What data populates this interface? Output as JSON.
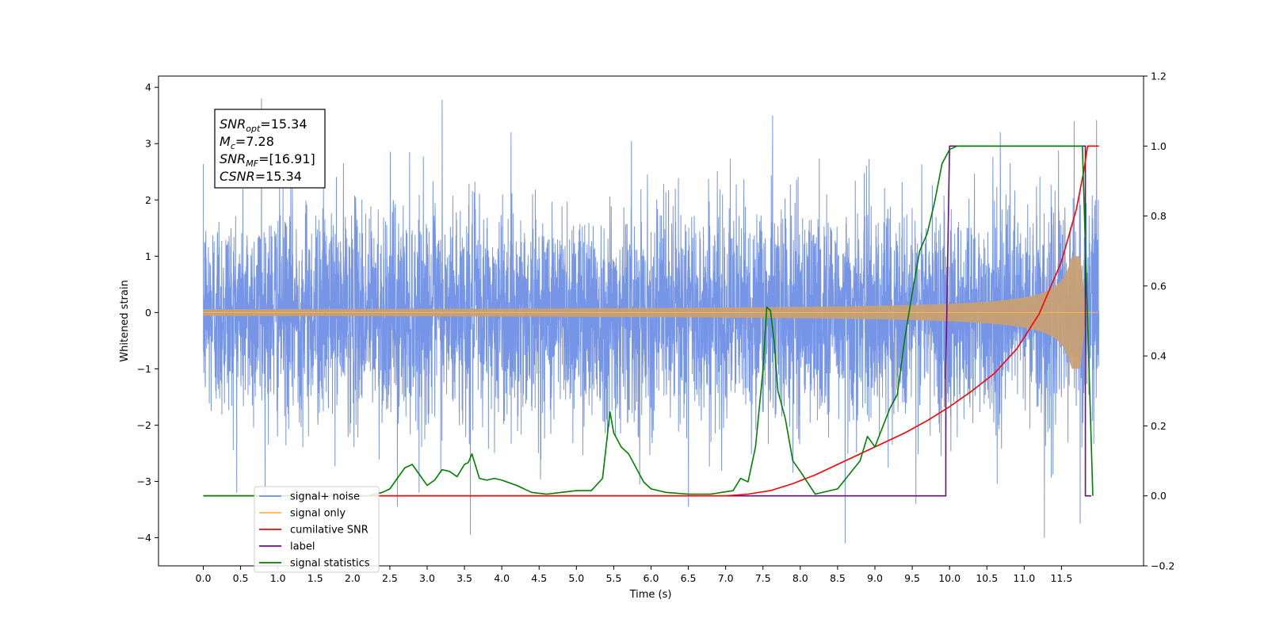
{
  "chart_data": {
    "type": "line",
    "xlabel": "Time (s)",
    "ylabel_left": "Whitened strain",
    "ylabel_right": "",
    "xlim": [
      -0.6,
      12.6
    ],
    "ylim_left": [
      -4.5,
      4.2
    ],
    "ylim_right": [
      -0.2,
      1.2
    ],
    "x_ticks": [
      "0.0",
      "0.5",
      "1.0",
      "1.5",
      "2.0",
      "2.5",
      "3.0",
      "3.5",
      "4.0",
      "4.5",
      "5.0",
      "5.5",
      "6.0",
      "6.5",
      "7.0",
      "7.5",
      "8.0",
      "8.5",
      "9.0",
      "9.5",
      "10.0",
      "10.5",
      "11.0",
      "11.5"
    ],
    "y_ticks_left": [
      "4",
      "3",
      "2",
      "1",
      "0",
      "−1",
      "−2",
      "−3",
      "−4"
    ],
    "y_ticks_right": [
      "1.2",
      "1.0",
      "0.8",
      "0.6",
      "0.4",
      "0.2",
      "0.0",
      "−0.2"
    ],
    "grid": false,
    "legend_position": "lower-left",
    "annotation": {
      "lines": [
        {
          "main": "SNR",
          "sub": "opt",
          "rest": "=15.34"
        },
        {
          "main": "M",
          "sub": "c",
          "rest": "=7.28"
        },
        {
          "main": "SNR",
          "sub": "MF",
          "rest": "=[16.91]"
        },
        {
          "main": "CSNR",
          "sub": "",
          "rest": "=15.34"
        }
      ]
    },
    "series": [
      {
        "name": "signal+ noise",
        "color": "#6f8fe6",
        "axis": "left",
        "noise_sigma": 1.0,
        "peaks": [
          {
            "x": 0.78,
            "y": 3.8
          },
          {
            "x": 3.2,
            "y": 3.78
          },
          {
            "x": 7.63,
            "y": 3.5
          },
          {
            "x": 3.58,
            "y": -3.95
          },
          {
            "x": 8.6,
            "y": -4.1
          },
          {
            "x": 11.27,
            "y": -4.0
          },
          {
            "x": 11.75,
            "y": -3.75
          },
          {
            "x": 6.5,
            "y": -3.45
          },
          {
            "x": 2.6,
            "y": -3.45
          },
          {
            "x": 9.55,
            "y": -3.4
          },
          {
            "x": 11.67,
            "y": 3.4
          },
          {
            "x": 11.97,
            "y": 3.42
          }
        ]
      },
      {
        "name": "signal only",
        "color": "#ffb74d",
        "axis": "left",
        "chirp": {
          "t_merge": 11.75,
          "t_end": 12.0,
          "amp_near": 1.0,
          "amp_far": 0.03
        }
      },
      {
        "name": "cumilative SNR",
        "color": "#ff0000",
        "axis": "right",
        "x": [
          0,
          7.0,
          7.3,
          7.6,
          7.9,
          8.2,
          8.5,
          8.8,
          9.1,
          9.4,
          9.7,
          10.0,
          10.3,
          10.6,
          10.9,
          11.2,
          11.5,
          11.7,
          11.8,
          11.85,
          11.9,
          12.0
        ],
        "values": [
          0,
          0,
          0.005,
          0.015,
          0.035,
          0.06,
          0.09,
          0.12,
          0.15,
          0.18,
          0.215,
          0.255,
          0.3,
          0.35,
          0.42,
          0.52,
          0.67,
          0.82,
          0.93,
          1.0,
          1.0,
          1.0
        ]
      },
      {
        "name": "label",
        "color": "#6a0d83",
        "axis": "right",
        "x": [
          0,
          9.95,
          9.95,
          10.0,
          11.82,
          11.82,
          11.9
        ],
        "values": [
          0,
          0,
          0.35,
          1.0,
          1.0,
          0,
          0
        ]
      },
      {
        "name": "signal statistics",
        "color": "#008000",
        "axis": "right",
        "x": [
          0,
          2.2,
          2.4,
          2.5,
          2.6,
          2.7,
          2.8,
          2.9,
          3.0,
          3.1,
          3.2,
          3.3,
          3.4,
          3.5,
          3.55,
          3.6,
          3.7,
          3.8,
          3.9,
          4.0,
          4.2,
          4.4,
          4.6,
          4.8,
          5.0,
          5.2,
          5.35,
          5.45,
          5.5,
          5.6,
          5.7,
          5.8,
          5.9,
          6.0,
          6.2,
          6.5,
          6.8,
          7.1,
          7.2,
          7.3,
          7.4,
          7.5,
          7.55,
          7.6,
          7.65,
          7.7,
          7.8,
          7.9,
          8.0,
          8.2,
          8.5,
          8.8,
          8.9,
          9.0,
          9.2,
          9.3,
          9.4,
          9.5,
          9.6,
          9.7,
          9.8,
          9.9,
          10.0,
          10.1,
          10.5,
          11.0,
          11.5,
          11.78,
          11.85,
          11.92
        ],
        "values": [
          0,
          0,
          0.01,
          0.02,
          0.05,
          0.08,
          0.09,
          0.06,
          0.03,
          0.045,
          0.075,
          0.07,
          0.055,
          0.09,
          0.095,
          0.12,
          0.05,
          0.045,
          0.05,
          0.045,
          0.03,
          0.01,
          0.005,
          0.01,
          0.015,
          0.015,
          0.05,
          0.24,
          0.18,
          0.14,
          0.12,
          0.08,
          0.04,
          0.02,
          0.01,
          0.005,
          0.005,
          0.015,
          0.05,
          0.04,
          0.14,
          0.36,
          0.54,
          0.53,
          0.44,
          0.3,
          0.22,
          0.1,
          0.07,
          0.005,
          0.02,
          0.1,
          0.17,
          0.14,
          0.25,
          0.29,
          0.45,
          0.58,
          0.7,
          0.75,
          0.84,
          0.95,
          0.99,
          1.0,
          1.0,
          1.0,
          1.0,
          1.0,
          0.5,
          0.0
        ]
      }
    ]
  },
  "legend": {
    "items": [
      {
        "label": "signal+ noise",
        "color": "#6f8fe6"
      },
      {
        "label": "signal only",
        "color": "#ffb74d"
      },
      {
        "label": "cumilative SNR",
        "color": "#ff0000"
      },
      {
        "label": "label",
        "color": "#6a0d83"
      },
      {
        "label": "signal statistics",
        "color": "#008000"
      }
    ]
  }
}
